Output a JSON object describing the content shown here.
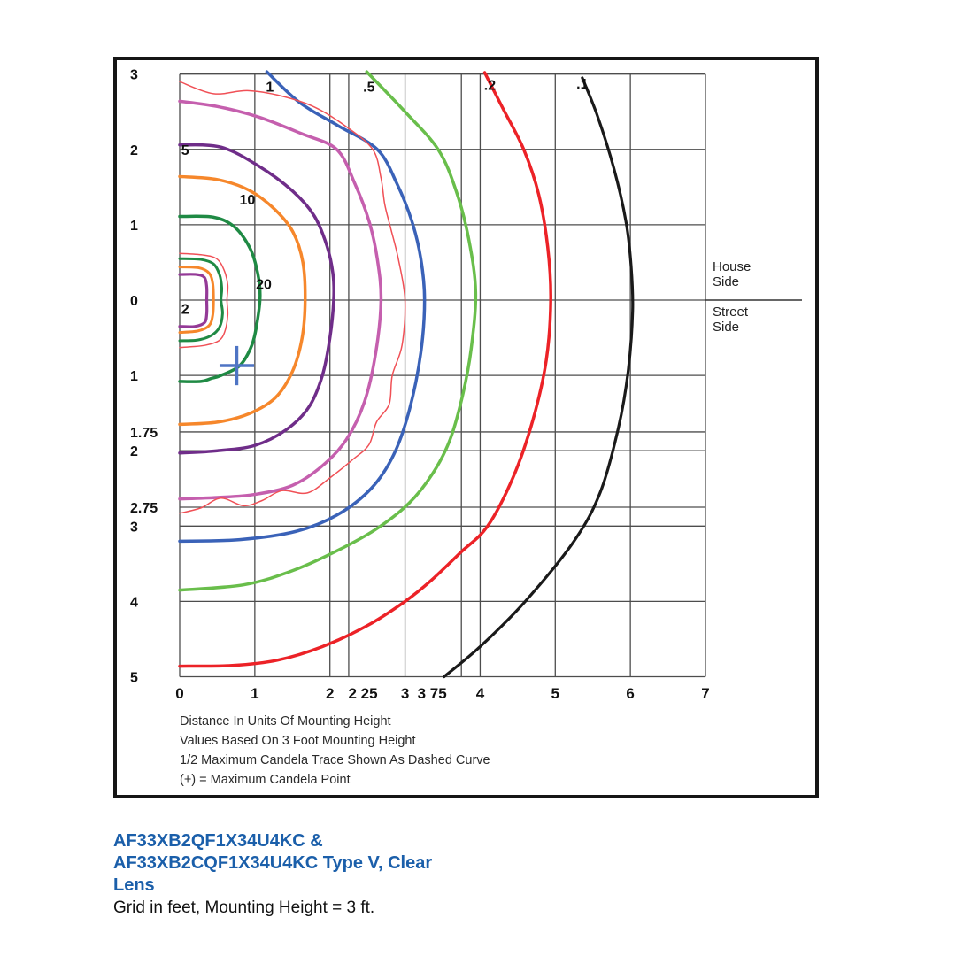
{
  "page": {
    "caption": {
      "lines": [
        "AF33XB2QF1X34U4KC &",
        "AF33XB2CQF1X34U4KC Type V, Clear",
        "Lens"
      ],
      "note": "Grid in feet, Mounting Height = 3 ft.",
      "color": "#1b5faa"
    }
  },
  "chart_data": {
    "type": "line",
    "subtype": "isofootcandle contour plot (photometric distribution, Type V)",
    "annotations": [
      "Distance In Units Of Mounting Height",
      "Values Based On 3 Foot Mounting Height",
      "1/2 Maximum Candela Trace Shown As Dashed Curve",
      "(+) = Maximum Candela Point"
    ],
    "side_labels": {
      "house": [
        "House",
        "Side"
      ],
      "street": [
        "Street",
        "Side"
      ]
    },
    "grid": {
      "color": "#4d4d4d",
      "x_range": [
        0,
        7
      ],
      "y_range": [
        -5,
        3
      ],
      "v_lines": [
        0,
        1,
        2,
        2.25,
        3,
        3.75,
        4,
        5,
        6,
        7
      ],
      "h_lines": [
        3,
        2,
        1,
        0,
        -1,
        -1.75,
        -2,
        -2.75,
        -3,
        -4,
        -5
      ],
      "divider_y": 0
    },
    "x_ticks": [
      {
        "x": 0,
        "label": "0"
      },
      {
        "x": 1,
        "label": "1"
      },
      {
        "x": 2,
        "label": "2"
      },
      {
        "x": 2.44,
        "label": "2 25"
      },
      {
        "x": 3,
        "label": "3"
      },
      {
        "x": 3.36,
        "label": "3 75"
      },
      {
        "x": 4,
        "label": "4"
      },
      {
        "x": 5,
        "label": "5"
      },
      {
        "x": 6,
        "label": "6"
      },
      {
        "x": 7,
        "label": "7"
      }
    ],
    "y_ticks": [
      {
        "y": 3,
        "label": "3"
      },
      {
        "y": 2,
        "label": "2"
      },
      {
        "y": 1,
        "label": "1"
      },
      {
        "y": 0,
        "label": "0"
      },
      {
        "y": -1,
        "label": "1"
      },
      {
        "y": -1.75,
        "label": "1.75"
      },
      {
        "y": -2,
        "label": "2"
      },
      {
        "y": -2.75,
        "label": "2.75"
      },
      {
        "y": -3,
        "label": "3"
      },
      {
        "y": -4,
        "label": "4"
      },
      {
        "y": -5,
        "label": "5"
      }
    ],
    "max_candela_point": {
      "x": 0.76,
      "y": -0.87,
      "arm_x": 0.23,
      "arm_y": 0.26,
      "color": "#4e74c4"
    },
    "contours": [
      {
        "name": "fc-0.1",
        "footcandles": 0.1,
        "label": ".1",
        "label_at": [
          5.36,
          2.88
        ],
        "label_anchor": "middle",
        "color": "#1a1a1a",
        "width": 3.2,
        "points": [
          [
            5.36,
            2.95
          ],
          [
            5.56,
            2.45
          ],
          [
            5.78,
            1.75
          ],
          [
            5.94,
            1.05
          ],
          [
            6.01,
            0.45
          ],
          [
            6.03,
            -0.15
          ],
          [
            5.97,
            -0.95
          ],
          [
            5.84,
            -1.7
          ],
          [
            5.6,
            -2.55
          ],
          [
            5.25,
            -3.2
          ],
          [
            4.6,
            -4.0
          ],
          [
            4.0,
            -4.6
          ],
          [
            3.52,
            -5.0
          ]
        ]
      },
      {
        "name": "fc-0.2",
        "footcandles": 0.2,
        "label": ".2",
        "label_at": [
          4.13,
          2.86
        ],
        "label_anchor": "middle",
        "color": "#ec2227",
        "width": 3.5,
        "points": [
          [
            4.06,
            3.02
          ],
          [
            4.3,
            2.55
          ],
          [
            4.58,
            2.0
          ],
          [
            4.78,
            1.4
          ],
          [
            4.9,
            0.7
          ],
          [
            4.94,
            0.0
          ],
          [
            4.88,
            -0.8
          ],
          [
            4.7,
            -1.6
          ],
          [
            4.44,
            -2.35
          ],
          [
            4.1,
            -3.0
          ],
          [
            3.74,
            -3.35
          ],
          [
            3.35,
            -3.72
          ],
          [
            3.0,
            -4.0
          ],
          [
            2.5,
            -4.32
          ],
          [
            1.9,
            -4.6
          ],
          [
            1.3,
            -4.78
          ],
          [
            0.7,
            -4.85
          ],
          [
            0.0,
            -4.86
          ]
        ]
      },
      {
        "name": "fc-0.5",
        "footcandles": 0.5,
        "label": ".5",
        "label_at": [
          2.52,
          2.84
        ],
        "label_anchor": "middle",
        "color": "#69be4b",
        "width": 3.5,
        "points": [
          [
            2.49,
            3.03
          ],
          [
            3.0,
            2.5
          ],
          [
            3.44,
            2.0
          ],
          [
            3.68,
            1.45
          ],
          [
            3.85,
            0.8
          ],
          [
            3.94,
            0.1
          ],
          [
            3.88,
            -0.65
          ],
          [
            3.77,
            -1.25
          ],
          [
            3.6,
            -1.85
          ],
          [
            3.37,
            -2.3
          ],
          [
            3.05,
            -2.7
          ],
          [
            2.6,
            -3.05
          ],
          [
            2.05,
            -3.35
          ],
          [
            1.48,
            -3.6
          ],
          [
            0.85,
            -3.78
          ],
          [
            0.0,
            -3.85
          ]
        ]
      },
      {
        "name": "fc-1",
        "footcandles": 1,
        "label": "1",
        "label_at": [
          1.2,
          2.84
        ],
        "label_anchor": "middle",
        "color": "#3a62b8",
        "width": 3.5,
        "points": [
          [
            1.16,
            3.03
          ],
          [
            1.6,
            2.62
          ],
          [
            2.1,
            2.32
          ],
          [
            2.63,
            2.0
          ],
          [
            2.89,
            1.55
          ],
          [
            3.09,
            1.05
          ],
          [
            3.21,
            0.55
          ],
          [
            3.26,
            0.0
          ],
          [
            3.21,
            -0.7
          ],
          [
            3.06,
            -1.45
          ],
          [
            2.85,
            -2.05
          ],
          [
            2.55,
            -2.5
          ],
          [
            2.1,
            -2.85
          ],
          [
            1.55,
            -3.07
          ],
          [
            0.8,
            -3.18
          ],
          [
            0.0,
            -3.2
          ]
        ]
      },
      {
        "name": "fc-2",
        "footcandles": 2,
        "label": null,
        "color": "#c55fae",
        "width": 3.5,
        "points": [
          [
            0.0,
            2.64
          ],
          [
            0.5,
            2.57
          ],
          [
            1.05,
            2.43
          ],
          [
            1.62,
            2.21
          ],
          [
            2.09,
            2.0
          ],
          [
            2.33,
            1.55
          ],
          [
            2.52,
            1.05
          ],
          [
            2.63,
            0.55
          ],
          [
            2.68,
            0.0
          ],
          [
            2.61,
            -0.7
          ],
          [
            2.46,
            -1.35
          ],
          [
            2.22,
            -1.85
          ],
          [
            1.9,
            -2.2
          ],
          [
            1.5,
            -2.46
          ],
          [
            1.0,
            -2.58
          ],
          [
            0.5,
            -2.62
          ],
          [
            0.0,
            -2.64
          ]
        ]
      },
      {
        "name": "half-max-candela-trace-outer",
        "footcandles": null,
        "label": null,
        "color": "#f05056",
        "width": 1.5,
        "points": [
          [
            0.0,
            2.9
          ],
          [
            0.45,
            2.74
          ],
          [
            0.9,
            2.78
          ],
          [
            1.35,
            2.71
          ],
          [
            1.8,
            2.56
          ],
          [
            2.22,
            2.3
          ],
          [
            2.57,
            2.0
          ],
          [
            2.68,
            1.62
          ],
          [
            2.73,
            1.27
          ],
          [
            2.81,
            0.95
          ],
          [
            2.91,
            0.55
          ],
          [
            3.0,
            0.0
          ],
          [
            2.96,
            -0.6
          ],
          [
            2.83,
            -1.0
          ],
          [
            2.79,
            -1.38
          ],
          [
            2.62,
            -1.62
          ],
          [
            2.52,
            -1.92
          ],
          [
            2.3,
            -2.12
          ],
          [
            2.0,
            -2.36
          ],
          [
            1.7,
            -2.56
          ],
          [
            1.36,
            -2.53
          ],
          [
            1.1,
            -2.66
          ],
          [
            0.85,
            -2.73
          ],
          [
            0.55,
            -2.63
          ],
          [
            0.28,
            -2.76
          ],
          [
            0.0,
            -2.83
          ]
        ]
      },
      {
        "name": "fc-5",
        "footcandles": 5,
        "label": "5",
        "label_at": [
          0.02,
          2.0
        ],
        "label_anchor": "start",
        "color": "#6f2d89",
        "width": 3.5,
        "points": [
          [
            0.0,
            2.06
          ],
          [
            0.55,
            2.03
          ],
          [
            1.05,
            1.78
          ],
          [
            1.5,
            1.45
          ],
          [
            1.79,
            1.12
          ],
          [
            1.96,
            0.72
          ],
          [
            2.04,
            0.35
          ],
          [
            2.05,
            0.0
          ],
          [
            2.0,
            -0.5
          ],
          [
            1.9,
            -1.0
          ],
          [
            1.72,
            -1.42
          ],
          [
            1.42,
            -1.72
          ],
          [
            1.0,
            -1.93
          ],
          [
            0.5,
            -2.0
          ],
          [
            0.0,
            -2.03
          ]
        ]
      },
      {
        "name": "fc-10",
        "footcandles": 10,
        "label": "10",
        "label_at": [
          0.9,
          1.34
        ],
        "label_anchor": "middle",
        "color": "#f6872b",
        "width": 3.5,
        "points": [
          [
            0.0,
            1.64
          ],
          [
            0.5,
            1.6
          ],
          [
            0.92,
            1.46
          ],
          [
            1.27,
            1.2
          ],
          [
            1.51,
            0.9
          ],
          [
            1.64,
            0.5
          ],
          [
            1.67,
            0.0
          ],
          [
            1.63,
            -0.5
          ],
          [
            1.5,
            -0.95
          ],
          [
            1.27,
            -1.3
          ],
          [
            0.92,
            -1.51
          ],
          [
            0.5,
            -1.62
          ],
          [
            0.0,
            -1.65
          ]
        ]
      },
      {
        "name": "fc-20",
        "footcandles": 20,
        "label": "20",
        "label_at": [
          1.12,
          0.22
        ],
        "label_anchor": "middle",
        "color": "#1f8a44",
        "width": 3.5,
        "points": [
          [
            0.0,
            1.11
          ],
          [
            0.45,
            1.1
          ],
          [
            0.73,
            0.97
          ],
          [
            0.94,
            0.68
          ],
          [
            1.04,
            0.35
          ],
          [
            1.07,
            0.05
          ],
          [
            1.03,
            -0.3
          ],
          [
            0.96,
            -0.6
          ],
          [
            0.8,
            -0.87
          ],
          [
            0.55,
            -1.0
          ],
          [
            0.42,
            -1.04
          ],
          [
            0.28,
            -1.08
          ],
          [
            0.0,
            -1.08
          ]
        ]
      },
      {
        "name": "half-max-candela-trace-inner",
        "footcandles": null,
        "label": null,
        "color": "#f05056",
        "width": 1.5,
        "points": [
          [
            0.0,
            0.62
          ],
          [
            0.3,
            0.6
          ],
          [
            0.49,
            0.55
          ],
          [
            0.59,
            0.4
          ],
          [
            0.64,
            0.2
          ],
          [
            0.63,
            0.0
          ],
          [
            0.64,
            -0.2
          ],
          [
            0.6,
            -0.42
          ],
          [
            0.52,
            -0.54
          ],
          [
            0.34,
            -0.6
          ],
          [
            0.15,
            -0.62
          ],
          [
            0.0,
            -0.63
          ]
        ]
      },
      {
        "name": "fc-20-inner",
        "footcandles": 20,
        "label": null,
        "color": "#1f8a44",
        "width": 3.0,
        "points": [
          [
            0.0,
            0.55
          ],
          [
            0.28,
            0.54
          ],
          [
            0.45,
            0.48
          ],
          [
            0.53,
            0.34
          ],
          [
            0.56,
            0.16
          ],
          [
            0.55,
            0.0
          ],
          [
            0.57,
            -0.18
          ],
          [
            0.53,
            -0.36
          ],
          [
            0.42,
            -0.47
          ],
          [
            0.24,
            -0.53
          ],
          [
            0.0,
            -0.54
          ]
        ]
      },
      {
        "name": "fc-10-inner",
        "footcandles": 10,
        "label": null,
        "color": "#f6872b",
        "width": 3.0,
        "points": [
          [
            0.0,
            0.44
          ],
          [
            0.25,
            0.43
          ],
          [
            0.39,
            0.36
          ],
          [
            0.44,
            0.22
          ],
          [
            0.45,
            0.0
          ],
          [
            0.44,
            -0.2
          ],
          [
            0.39,
            -0.34
          ],
          [
            0.24,
            -0.41
          ],
          [
            0.0,
            -0.43
          ]
        ]
      },
      {
        "name": "fc-2-inner",
        "footcandles": 2,
        "label": "2",
        "label_at": [
          0.02,
          -0.11
        ],
        "label_anchor": "start",
        "color": "#943a97",
        "width": 3.2,
        "points": [
          [
            0.0,
            0.34
          ],
          [
            0.22,
            0.34
          ],
          [
            0.33,
            0.3
          ],
          [
            0.36,
            0.17
          ],
          [
            0.36,
            0.0
          ],
          [
            0.36,
            -0.18
          ],
          [
            0.33,
            -0.3
          ],
          [
            0.2,
            -0.35
          ],
          [
            0.0,
            -0.35
          ]
        ]
      }
    ]
  }
}
